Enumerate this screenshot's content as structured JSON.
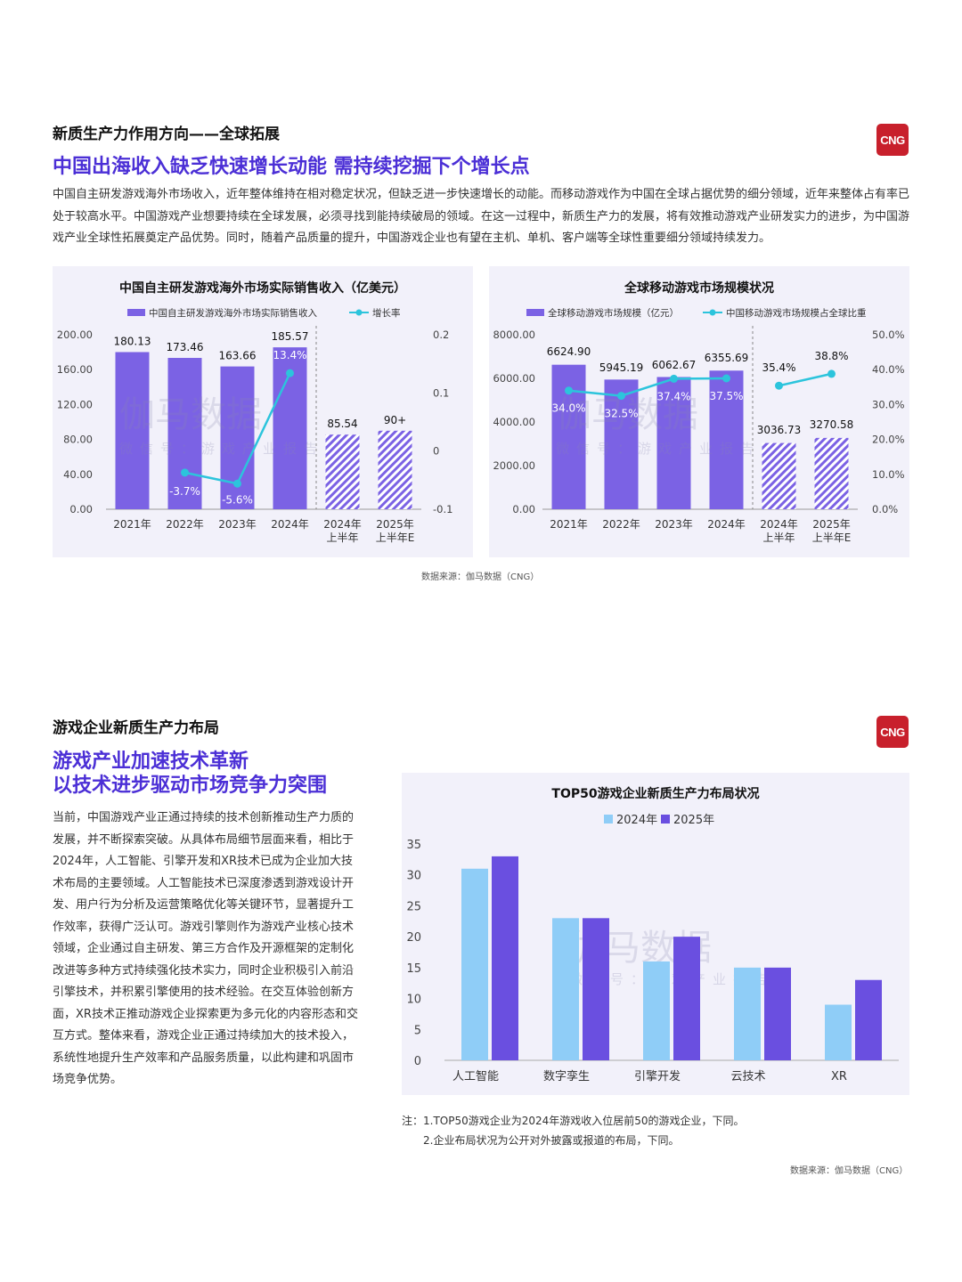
{
  "section1": {
    "title": "新质生产力作用方向——全球拓展",
    "headline": "中国出海收入缺乏快速增长动能 需持续挖掘下个增长点",
    "paragraph": "中国自主研发游戏海外市场收入，近年整体维持在相对稳定状况，但缺乏进一步快速增长的动能。而移动游戏作为中国在全球占据优势的细分领域，近年来整体占有率已处于较高水平。中国游戏产业想要持续在全球发展，必须寻找到能持续破局的领域。在这一过程中，新质生产力的发展，将有效推动游戏产业研发实力的进步，为中国游戏产业全球性拓展奠定产品优势。同时，随着产品质量的提升，中国游戏企业也有望在主机、单机、客户端等全球性重要细分领域持续发力。",
    "source": "数据来源：伽马数据（CNG）"
  },
  "section2": {
    "title": "游戏企业新质生产力布局",
    "headline_line1": "游戏产业加速技术革新",
    "headline_line2": "以技术进步驱动市场竞争力突围",
    "paragraph": "当前，中国游戏产业正通过持续的技术创新推动生产力质的发展，并不断探索突破。从具体布局细节层面来看，相比于2024年，人工智能、引擎开发和XR技术已成为企业加大技术布局的主要领域。人工智能技术已深度渗透到游戏设计开发、用户行为分析及运营策略优化等关键环节，显著提升工作效率，获得广泛认可。游戏引擎则作为游戏产业核心技术领域，企业通过自主研发、第三方合作及开源框架的定制化改进等多种方式持续强化技术实力，同时企业积极引入前沿引擎技术，并积累引擎使用的技术经验。在交互体验创新方面，XR技术正推动游戏企业探索更为多元化的内容形态和交互方式。整体来看，游戏企业正通过持续加大的技术投入，系统性地提升生产效率和产品服务质量，以此构建和巩固市场竞争优势。",
    "note1": "注：1.TOP50游戏企业为2024年游戏收入位居前50的游戏企业，下同。",
    "note2": "2.企业布局状况为公开对外披露或报道的布局，下同。",
    "source": "数据来源：伽马数据（CNG）"
  },
  "logo": {
    "text": "CNG"
  },
  "watermark": {
    "main": "伽马数据",
    "sub": "微信号：游戏产业报告"
  },
  "colors": {
    "accent": "#4b2fd6",
    "bar": "#7b62e4",
    "line": "#2cc4dc",
    "bar2024": "#8fcdf7",
    "bar2025": "#6a4fe0",
    "logo": "#c8202c"
  },
  "chart_data": [
    {
      "type": "bar",
      "title": "中国自主研发游戏海外市场实际销售收入（亿美元）",
      "categories": [
        "2021年",
        "2022年",
        "2023年",
        "2024年",
        "2024年\n上半年",
        "2025年\n上半年E"
      ],
      "series": [
        {
          "name": "中国自主研发游戏海外市场实际销售收入",
          "values": [
            180.13,
            173.46,
            163.66,
            185.57,
            85.54,
            90
          ],
          "labels": [
            "180.13",
            "173.46",
            "163.66",
            "185.57",
            "85.54",
            "90+"
          ]
        },
        {
          "name": "增长率",
          "type": "line",
          "values": [
            null,
            -0.037,
            -0.056,
            0.134,
            null,
            null
          ],
          "labels": [
            "",
            "-3.7%",
            "-5.6%",
            "13.4%",
            "",
            ""
          ]
        }
      ],
      "ylim": [
        0,
        200
      ],
      "yticks": [
        "0.00",
        "40.00",
        "80.00",
        "120.00",
        "160.00",
        "200.00"
      ],
      "y2lim": [
        -0.1,
        0.2
      ],
      "y2ticks": [
        "-0.1",
        "0",
        "0.1",
        "0.2"
      ],
      "hatched_from_index": 4
    },
    {
      "type": "bar",
      "title": "全球移动游戏市场规模状况",
      "categories": [
        "2021年",
        "2022年",
        "2023年",
        "2024年",
        "2024年\n上半年",
        "2025年\n上半年E"
      ],
      "series": [
        {
          "name": "全球移动游戏市场规模（亿元）",
          "values": [
            6624.9,
            5945.19,
            6062.67,
            6355.69,
            3036.73,
            3270.58
          ],
          "labels": [
            "6624.90",
            "5945.19",
            "6062.67",
            "6355.69",
            "3036.73",
            "3270.58"
          ]
        },
        {
          "name": "中国移动游戏市场规模占全球比重",
          "type": "line",
          "values": [
            34.0,
            32.5,
            37.4,
            37.5,
            35.4,
            38.8
          ],
          "labels": [
            "34.0%",
            "32.5%",
            "37.4%",
            "37.5%",
            "35.4%",
            "38.8%"
          ]
        }
      ],
      "ylim": [
        0,
        8000
      ],
      "yticks": [
        "0.00",
        "2000.00",
        "4000.00",
        "6000.00",
        "8000.00"
      ],
      "y2lim": [
        0,
        50
      ],
      "y2ticks": [
        "0.0%",
        "10.0%",
        "20.0%",
        "30.0%",
        "40.0%",
        "50.0%"
      ],
      "hatched_from_index": 4
    },
    {
      "type": "bar",
      "title": "TOP50游戏企业新质生产力布局状况",
      "categories": [
        "人工智能",
        "数字孪生",
        "引擎开发",
        "云技术",
        "XR"
      ],
      "series": [
        {
          "name": "2024年",
          "values": [
            31,
            23,
            16,
            15,
            9
          ]
        },
        {
          "name": "2025年",
          "values": [
            33,
            23,
            20,
            15,
            13
          ]
        }
      ],
      "ylim": [
        0,
        35
      ],
      "yticks": [
        "0",
        "5",
        "10",
        "15",
        "20",
        "25",
        "30",
        "35"
      ]
    }
  ]
}
